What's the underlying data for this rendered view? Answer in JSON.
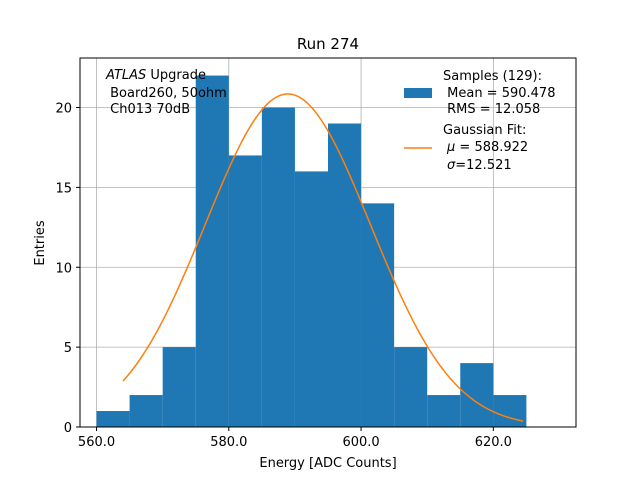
{
  "chart_data": {
    "type": "bar",
    "title": "Run 274",
    "xlabel": "Energy [ADC Counts]",
    "ylabel": "Entries",
    "xlim": [
      557.5,
      632.5
    ],
    "ylim": [
      0,
      23.1
    ],
    "grid": true,
    "x_ticks": [
      560,
      580,
      600,
      620
    ],
    "x_tick_labels": [
      "560.0",
      "580.0",
      "600.0",
      "620.0"
    ],
    "y_ticks": [
      0,
      5,
      10,
      15,
      20
    ],
    "y_tick_labels": [
      "0",
      "5",
      "10",
      "15",
      "20"
    ],
    "bin_edges": [
      560,
      565,
      570,
      575,
      580,
      585,
      590,
      595,
      600,
      605,
      610,
      615,
      620,
      625
    ],
    "values": [
      1,
      2,
      5,
      22,
      17,
      20,
      16,
      19,
      14,
      5,
      2,
      4,
      2
    ],
    "bar_color": "#1f77b4",
    "fit": {
      "mu": 588.922,
      "sigma": 12.521,
      "amplitude": 20.85,
      "x_start": 564,
      "x_end": 624.5,
      "color": "#ff7f0e"
    },
    "legend": {
      "position": "top-right",
      "samples_lines": [
        "Samples (129):",
        " Mean = 590.478",
        " RMS = 12.058"
      ],
      "fit_line1": "Gaussian Fit:",
      "fit_mu_symbol": "μ",
      "fit_mu_rest": " = 588.922",
      "fit_sigma_symbol": "σ",
      "fit_sigma_rest": "=12.521"
    },
    "annotation": {
      "italic": "ATLAS",
      "rest": " Upgrade",
      "line2": " Board260, 50ohm",
      "line3": " Ch013 70dB"
    }
  }
}
